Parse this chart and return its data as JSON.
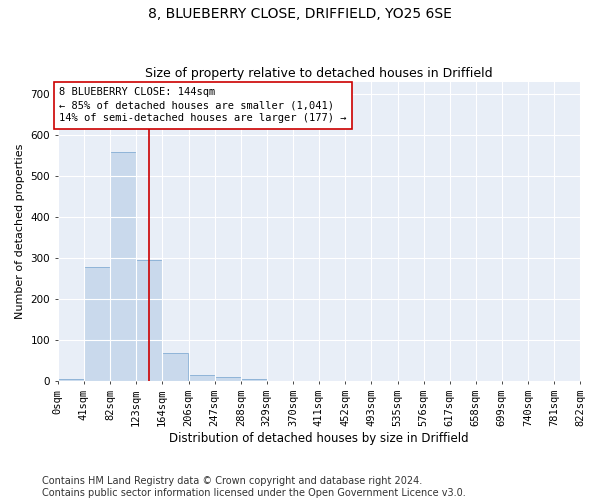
{
  "title": "8, BLUEBERRY CLOSE, DRIFFIELD, YO25 6SE",
  "subtitle": "Size of property relative to detached houses in Driffield",
  "xlabel": "Distribution of detached houses by size in Driffield",
  "ylabel": "Number of detached properties",
  "footnote1": "Contains HM Land Registry data © Crown copyright and database right 2024.",
  "footnote2": "Contains public sector information licensed under the Open Government Licence v3.0.",
  "bin_edges": [
    0,
    41,
    82,
    123,
    164,
    206,
    247,
    288,
    329,
    370,
    411,
    452,
    493,
    535,
    576,
    617,
    658,
    699,
    740,
    781,
    822
  ],
  "bar_heights": [
    5,
    280,
    560,
    295,
    70,
    15,
    10,
    5,
    0,
    0,
    0,
    0,
    0,
    0,
    0,
    0,
    0,
    0,
    0,
    0
  ],
  "bar_color": "#c9d9ec",
  "bar_edgecolor": "#8fb4d8",
  "bar_linewidth": 0.7,
  "vline_x": 144,
  "vline_color": "#cc0000",
  "vline_linewidth": 1.2,
  "annotation_text_line1": "8 BLUEBERRY CLOSE: 144sqm",
  "annotation_text_line2": "← 85% of detached houses are smaller (1,041)",
  "annotation_text_line3": "14% of semi-detached houses are larger (177) →",
  "annotation_fontsize": 7.5,
  "title_fontsize": 10,
  "subtitle_fontsize": 9,
  "xlabel_fontsize": 8.5,
  "ylabel_fontsize": 8,
  "tick_fontsize": 7.5,
  "footnote_fontsize": 7,
  "ylim": [
    0,
    730
  ],
  "xlim_max": 822,
  "plot_bg_color": "#e8eef7",
  "grid_color": "#ffffff",
  "tick_labels": [
    "0sqm",
    "41sqm",
    "82sqm",
    "123sqm",
    "164sqm",
    "206sqm",
    "247sqm",
    "288sqm",
    "329sqm",
    "370sqm",
    "411sqm",
    "452sqm",
    "493sqm",
    "535sqm",
    "576sqm",
    "617sqm",
    "658sqm",
    "699sqm",
    "740sqm",
    "781sqm",
    "822sqm"
  ]
}
